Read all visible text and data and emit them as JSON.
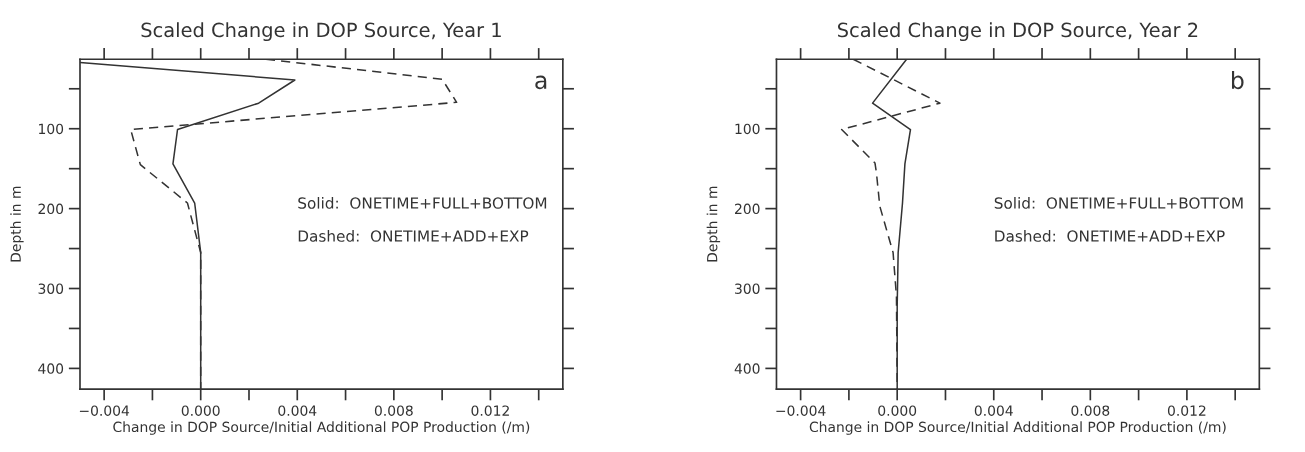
{
  "chart_data": [
    {
      "type": "line",
      "title": "Scaled Change in DOP Source, Year 1",
      "xlabel": "Change in DOP Source/Initial Additional POP Production (/m)",
      "ylabel": "Depth in m",
      "annotations": [
        "a",
        "Solid:  ONETIME+FULL+BOTTOM",
        "Dashed:  ONETIME+ADD+EXP"
      ],
      "xlim": [
        -0.005,
        0.015
      ],
      "ylim": [
        426,
        13
      ],
      "xticks": [
        {
          "value": -0.004,
          "label": "−0.004"
        },
        {
          "value": -0.002,
          "label": null
        },
        {
          "value": 0.0,
          "label": "0.000"
        },
        {
          "value": 0.002,
          "label": null
        },
        {
          "value": 0.004,
          "label": "0.004"
        },
        {
          "value": 0.006,
          "label": null
        },
        {
          "value": 0.008,
          "label": "0.008"
        },
        {
          "value": 0.01,
          "label": null
        },
        {
          "value": 0.012,
          "label": "0.012"
        },
        {
          "value": 0.014,
          "label": null
        }
      ],
      "yticks": [
        {
          "value": 50,
          "label": null
        },
        100,
        {
          "value": 150,
          "label": null
        },
        200,
        {
          "value": 250,
          "label": null
        },
        300,
        {
          "value": 350,
          "label": null
        },
        400
      ],
      "grid": false,
      "legend": false,
      "series": [
        {
          "color": "#333333",
          "line_style": "solid",
          "x": [
            -0.005,
            0.0039,
            0.0024,
            -0.00096,
            -0.00115,
            -0.00025,
            0.0,
            0.0
          ],
          "values": [
            17,
            39,
            68,
            101,
            144,
            193,
            255,
            426
          ]
        },
        {
          "color": "#333333",
          "line_style": "dashed",
          "x": [
            0.0027,
            0.01,
            0.0106,
            -0.0029,
            -0.0025,
            -0.00055,
            0.0,
            0.0
          ],
          "values": [
            13,
            38,
            67,
            101,
            145,
            193,
            255,
            426
          ]
        }
      ]
    },
    {
      "type": "line",
      "title": "Scaled Change in DOP Source, Year 2",
      "xlabel": "Change in DOP Source/Initial Additional POP Production (/m)",
      "ylabel": "Depth in m",
      "annotations": [
        "b",
        "Solid:  ONETIME+FULL+BOTTOM",
        "Dashed:  ONETIME+ADD+EXP"
      ],
      "xlim": [
        -0.005,
        0.015
      ],
      "ylim": [
        426,
        13
      ],
      "xticks": [
        {
          "value": -0.004,
          "label": "−0.004"
        },
        {
          "value": -0.002,
          "label": null
        },
        {
          "value": 0.0,
          "label": "0.000"
        },
        {
          "value": 0.002,
          "label": null
        },
        {
          "value": 0.004,
          "label": "0.004"
        },
        {
          "value": 0.006,
          "label": null
        },
        {
          "value": 0.008,
          "label": "0.008"
        },
        {
          "value": 0.01,
          "label": null
        },
        {
          "value": 0.012,
          "label": "0.012"
        },
        {
          "value": 0.014,
          "label": null
        }
      ],
      "yticks": [
        {
          "value": 50,
          "label": null
        },
        100,
        {
          "value": 150,
          "label": null
        },
        200,
        {
          "value": 250,
          "label": null
        },
        300,
        {
          "value": 350,
          "label": null
        },
        400
      ],
      "grid": false,
      "legend": false,
      "series": [
        {
          "color": "#333333",
          "line_style": "solid",
          "x": [
            0.00039,
            -0.00102,
            0.00055,
            0.00032,
            0.00022,
            4e-05,
            0.0,
            0.0
          ],
          "values": [
            13,
            68,
            101,
            144,
            193,
            255,
            322,
            426
          ]
        },
        {
          "color": "#333333",
          "line_style": "dashed",
          "x": [
            -0.00182,
            0.00177,
            -0.0023,
            -0.00092,
            -0.00086,
            -0.00072,
            -0.00017,
            -3e-05,
            0.0
          ],
          "values": [
            13,
            68,
            101,
            143,
            155,
            197,
            255,
            310,
            426
          ]
        }
      ]
    }
  ]
}
